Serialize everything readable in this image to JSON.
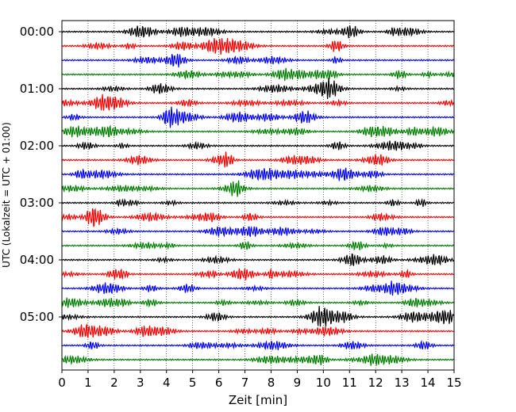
{
  "chart_data": {
    "type": "line",
    "title": "",
    "xlabel": "Zeit  [min]",
    "ylabel": "UTC (Lokalzeit = UTC + 01:00)",
    "xlim": [
      0,
      15
    ],
    "x_ticks": [
      0,
      1,
      2,
      3,
      4,
      5,
      6,
      7,
      8,
      9,
      10,
      11,
      12,
      13,
      14,
      15
    ],
    "y_tick_labels": [
      "00:00",
      "01:00",
      "02:00",
      "03:00",
      "04:00",
      "05:00"
    ],
    "grid": "dotted vertical lines at each minute",
    "legend": "none",
    "trace_colors": [
      "#000000",
      "#ff0000",
      "#0000ff",
      "#007f00"
    ],
    "traces": [
      {
        "start": "00:00",
        "color": "#000000"
      },
      {
        "start": "00:15",
        "color": "#ff0000"
      },
      {
        "start": "00:30",
        "color": "#0000ff"
      },
      {
        "start": "00:45",
        "color": "#007f00"
      },
      {
        "start": "01:00",
        "color": "#000000"
      },
      {
        "start": "01:15",
        "color": "#ff0000"
      },
      {
        "start": "01:30",
        "color": "#0000ff"
      },
      {
        "start": "01:45",
        "color": "#007f00"
      },
      {
        "start": "02:00",
        "color": "#000000"
      },
      {
        "start": "02:15",
        "color": "#ff0000"
      },
      {
        "start": "02:30",
        "color": "#0000ff"
      },
      {
        "start": "02:45",
        "color": "#007f00"
      },
      {
        "start": "03:00",
        "color": "#000000"
      },
      {
        "start": "03:15",
        "color": "#ff0000"
      },
      {
        "start": "03:30",
        "color": "#0000ff"
      },
      {
        "start": "03:45",
        "color": "#007f00"
      },
      {
        "start": "04:00",
        "color": "#000000"
      },
      {
        "start": "04:15",
        "color": "#ff0000"
      },
      {
        "start": "04:30",
        "color": "#0000ff"
      },
      {
        "start": "04:45",
        "color": "#007f00"
      },
      {
        "start": "05:00",
        "color": "#000000"
      },
      {
        "start": "05:15",
        "color": "#ff0000"
      },
      {
        "start": "05:30",
        "color": "#0000ff"
      },
      {
        "start": "05:45",
        "color": "#007f00"
      }
    ]
  }
}
